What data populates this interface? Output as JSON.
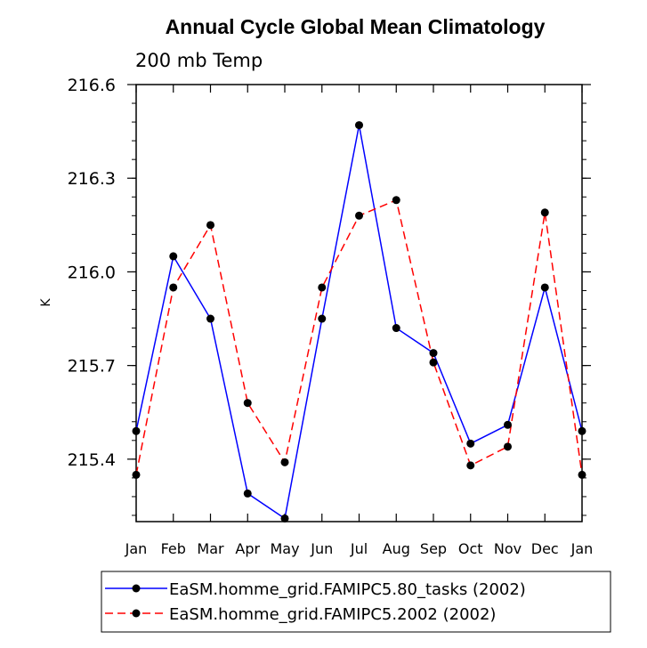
{
  "chart_data": {
    "type": "line",
    "title": "Annual Cycle Global Mean Climatology",
    "subtitle": "200 mb Temp",
    "xlabel": "",
    "ylabel": "K",
    "categories": [
      "Jan",
      "Feb",
      "Mar",
      "Apr",
      "May",
      "Jun",
      "Jul",
      "Aug",
      "Sep",
      "Oct",
      "Nov",
      "Dec",
      "Jan"
    ],
    "ylim": [
      215.2,
      216.6
    ],
    "yticks": [
      "216.6",
      "216.3",
      "216.0",
      "215.7",
      "215.4"
    ],
    "ytick_values": [
      216.6,
      216.3,
      216.0,
      215.7,
      215.4
    ],
    "series": [
      {
        "name": "EaSM.homme_grid.FAMIPC5.80_tasks (2002)",
        "color": "#0000ff",
        "dashed": false,
        "values": [
          215.49,
          216.05,
          215.85,
          215.29,
          215.21,
          215.85,
          216.47,
          215.82,
          215.74,
          215.45,
          215.51,
          215.95,
          215.49
        ]
      },
      {
        "name": "EaSM.homme_grid.FAMIPC5.2002 (2002)",
        "color": "#ff0000",
        "dashed": true,
        "values": [
          215.35,
          215.95,
          216.15,
          215.58,
          215.39,
          215.95,
          216.18,
          216.23,
          215.71,
          215.38,
          215.44,
          216.19,
          215.35
        ]
      }
    ],
    "legend_position": "bottom"
  }
}
